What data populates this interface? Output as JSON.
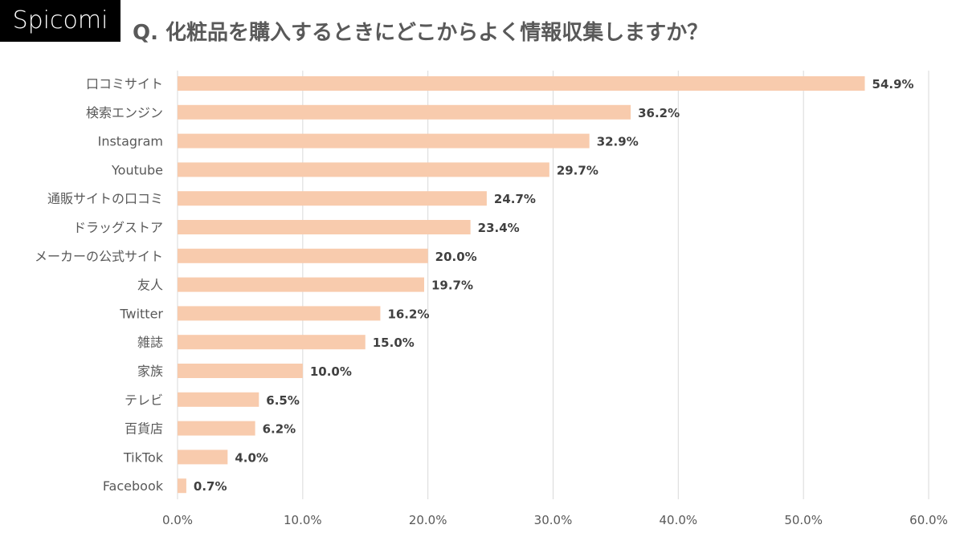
{
  "logo": "Spicomi",
  "chart_data": {
    "type": "bar",
    "orientation": "horizontal",
    "title": "Q. 化粧品を購入するときにどこからよく情報収集しますか？",
    "categories": [
      "口コミサイト",
      "検索エンジン",
      "Instagram",
      "Youtube",
      "通販サイトの口コミ",
      "ドラッグストア",
      "メーカーの公式サイト",
      "友人",
      "Twitter",
      "雑誌",
      "家族",
      "テレビ",
      "百貨店",
      "TikTok",
      "Facebook"
    ],
    "values": [
      54.9,
      36.2,
      32.9,
      29.7,
      24.7,
      23.4,
      20.0,
      19.7,
      16.2,
      15.0,
      10.0,
      6.5,
      6.2,
      4.0,
      0.7
    ],
    "data_labels": [
      "54.9%",
      "36.2%",
      "32.9%",
      "29.7%",
      "24.7%",
      "23.4%",
      "20.0%",
      "19.7%",
      "16.2%",
      "15.0%",
      "10.0%",
      "6.5%",
      "6.2%",
      "4.0%",
      "0.7%"
    ],
    "xlim": [
      0,
      60
    ],
    "x_ticks": [
      "0.0%",
      "10.0%",
      "20.0%",
      "30.0%",
      "40.0%",
      "50.0%",
      "60.0%"
    ],
    "grid": "vertical",
    "bar_color": "#F8CBAD",
    "xlabel": "",
    "ylabel": ""
  }
}
